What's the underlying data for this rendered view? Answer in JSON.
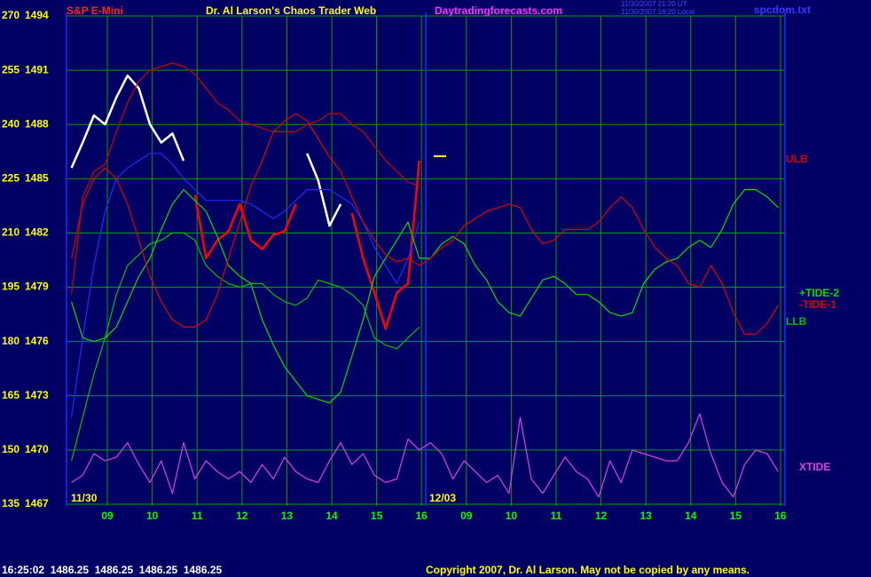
{
  "chart_data": {
    "type": "line",
    "instrument": "S&P E-Mini",
    "title": "Dr. Al Larson's Chaos Trader Web",
    "site": "Daytradingforecasts.com",
    "timestamps": [
      "11/30/2007 21:20 UT",
      "11/30/2007 16:20 Local"
    ],
    "file": "spcdom.txt",
    "date_labels": [
      "11/30",
      "12/03"
    ],
    "status": "16:25:02  1486.25  1486.25  1486.25  1486.25",
    "copyright": "Copyright 2007, Dr. Al Larson. May not be copied by any means.",
    "grid": true,
    "xlim": [
      8.09,
      24.1
    ],
    "xticks": [
      {
        "value": 9,
        "label": "09"
      },
      10,
      11,
      12,
      13,
      14,
      15,
      16,
      {
        "value": 17,
        "label": "09"
      },
      {
        "value": 18,
        "label": "10"
      },
      {
        "value": 19,
        "label": "11"
      },
      {
        "value": 20,
        "label": "12"
      },
      {
        "value": 21,
        "label": "13"
      },
      {
        "value": 22,
        "label": "14"
      },
      {
        "value": 23,
        "label": "15"
      },
      {
        "value": 24,
        "label": "16"
      }
    ],
    "ylim": [
      135,
      270
    ],
    "yticks": [
      135,
      150,
      165,
      180,
      195,
      210,
      225,
      240,
      255,
      270
    ],
    "y2lim": [
      1467,
      1494
    ],
    "y2ticks": [
      1467,
      1470,
      1473,
      1476,
      1479,
      1482,
      1485,
      1488,
      1491,
      1494
    ],
    "x": [
      8.2,
      8.45,
      8.7,
      8.95,
      9.2,
      9.45,
      9.7,
      9.95,
      10.2,
      10.45,
      10.7,
      10.95,
      11.2,
      11.45,
      11.7,
      11.95,
      12.2,
      12.45,
      12.7,
      12.95,
      13.2,
      13.45,
      13.7,
      13.95,
      14.2,
      14.45,
      14.7,
      14.95,
      15.2,
      15.45,
      15.7,
      15.95,
      16.2,
      16.45,
      16.7,
      16.95,
      17.2,
      17.45,
      17.7,
      17.95,
      18.2,
      18.45,
      18.7,
      18.95,
      19.2,
      19.45,
      19.7,
      19.95,
      20.2,
      20.45,
      20.7,
      20.95,
      21.2,
      21.45,
      21.7,
      21.95,
      22.2,
      22.45,
      22.7,
      22.95,
      23.2,
      23.45,
      23.7,
      23.95
    ],
    "series": [
      {
        "color": "#ffffff",
        "axis": "y2",
        "values": [
          1485.6,
          1487.0,
          1488.5,
          1488.0,
          1489.5,
          1490.7,
          1490.0,
          1488.0,
          1487.0,
          1487.5,
          1486.0,
          null,
          null,
          null,
          null,
          null,
          null,
          null,
          null,
          null,
          null,
          1486.4,
          1484.9,
          1482.4,
          1483.6,
          null,
          null,
          null,
          null,
          null,
          null,
          null,
          null,
          null,
          null,
          null,
          null,
          null,
          null,
          null,
          null,
          null,
          null,
          null,
          null,
          null,
          null,
          null,
          null,
          null,
          null,
          null,
          null,
          null,
          null,
          null,
          null,
          null,
          null,
          null,
          null,
          null,
          null,
          null
        ]
      },
      {
        "color": "#ff0000",
        "axis": "y2",
        "values": [
          null,
          null,
          null,
          null,
          null,
          null,
          null,
          null,
          null,
          null,
          null,
          1484.1,
          1480.6,
          1481.6,
          1482.1,
          1483.6,
          1481.6,
          1481.1,
          1481.9,
          1482.1,
          1483.6,
          null,
          null,
          null,
          null,
          1483.1,
          1480.6,
          1478.7,
          1476.7,
          1478.7,
          1479.2,
          1486.0,
          null,
          null,
          null,
          null,
          null,
          null,
          null,
          null,
          null,
          null,
          null,
          null,
          null,
          null,
          null,
          null,
          null,
          null,
          null,
          null,
          null,
          null,
          null,
          null,
          null,
          null,
          null,
          null,
          null,
          null,
          null,
          null
        ]
      },
      {
        "color": "#2828ff",
        "values": [
          159,
          181,
          201,
          216,
          225,
          228,
          230,
          232,
          232,
          229,
          225,
          222,
          219,
          219,
          219,
          219,
          218,
          216,
          214,
          216,
          219,
          222,
          222,
          222,
          220,
          218,
          213,
          206,
          201,
          196,
          203,
          213,
          null,
          null,
          null,
          null,
          null,
          null,
          null,
          null,
          null,
          null,
          null,
          null,
          null,
          null,
          null,
          null,
          null,
          null,
          null,
          null,
          null,
          null,
          null,
          null,
          null,
          null,
          null,
          null,
          null,
          null,
          null,
          null
        ]
      },
      {
        "name": "ULB",
        "color": "#d00000",
        "values": [
          193,
          220,
          227,
          229,
          238,
          246,
          252,
          255,
          256,
          257,
          256,
          254,
          250,
          246,
          244,
          241,
          240,
          239,
          238,
          238,
          238,
          240,
          241,
          243,
          243,
          240,
          238,
          234,
          230,
          227,
          224,
          223,
          null,
          null,
          null,
          null,
          null,
          null,
          null,
          null,
          null,
          null,
          null,
          null,
          null,
          null,
          null,
          null,
          null,
          null,
          null,
          null,
          null,
          null,
          null,
          null,
          null,
          null,
          null,
          null,
          null,
          null,
          null,
          null
        ]
      },
      {
        "name": "LLB",
        "color": "#00c000",
        "values": [
          147,
          159,
          171,
          181,
          193,
          201,
          204,
          207,
          208,
          210,
          210,
          208,
          201,
          198,
          196,
          195,
          196,
          196,
          193,
          191,
          190,
          192,
          197,
          196,
          195,
          193,
          190,
          181,
          179,
          178,
          181,
          184,
          null,
          null,
          null,
          null,
          null,
          null,
          null,
          null,
          null,
          null,
          null,
          null,
          null,
          null,
          null,
          null,
          null,
          null,
          null,
          null,
          null,
          null,
          null,
          null,
          null,
          null,
          null,
          null,
          null,
          null,
          null,
          null
        ]
      },
      {
        "name": "+TIDE-2",
        "color": "#00e000",
        "values": [
          191,
          181,
          180,
          181,
          184,
          191,
          198,
          203,
          211,
          218,
          222,
          219,
          216,
          209,
          201,
          198,
          196,
          186,
          179,
          173,
          169,
          165,
          164,
          163,
          166,
          176,
          186,
          198,
          203,
          208,
          213,
          203,
          203,
          207,
          209,
          207,
          201,
          197,
          191,
          188,
          187,
          192,
          197,
          198,
          196,
          193,
          193,
          191,
          188,
          187,
          188,
          196,
          200,
          202,
          203,
          206,
          208,
          206,
          211,
          218,
          222,
          222,
          220,
          217
        ]
      },
      {
        "name": "-TIDE-1",
        "color": "#e00000",
        "values": [
          203,
          218,
          225,
          228,
          225,
          218,
          208,
          198,
          191,
          186,
          184,
          184,
          186,
          193,
          203,
          213,
          223,
          230,
          238,
          241,
          243,
          241,
          236,
          231,
          227,
          220,
          213,
          208,
          204,
          202,
          203,
          201,
          203,
          206,
          208,
          212,
          214,
          216,
          217,
          218,
          217,
          211,
          207,
          208,
          211,
          211,
          211,
          213,
          217,
          220,
          217,
          211,
          206,
          203,
          201,
          196,
          195,
          201,
          196,
          188,
          182,
          182,
          185,
          190
        ]
      },
      {
        "name": "XTIDE",
        "color": "#e040e0",
        "values": [
          141,
          143,
          149,
          147,
          148,
          152,
          146,
          141,
          147,
          138,
          152,
          142,
          147,
          144,
          142,
          144,
          141,
          146,
          142,
          148,
          144,
          142,
          141,
          147,
          152,
          146,
          149,
          143,
          141,
          142,
          153,
          150,
          152,
          149,
          142,
          147,
          144,
          141,
          143,
          138,
          159,
          142,
          138,
          143,
          148,
          144,
          142,
          137,
          147,
          141,
          150,
          149,
          148,
          147,
          147,
          152,
          160,
          149,
          141,
          137,
          146,
          150,
          149,
          144
        ]
      }
    ]
  }
}
